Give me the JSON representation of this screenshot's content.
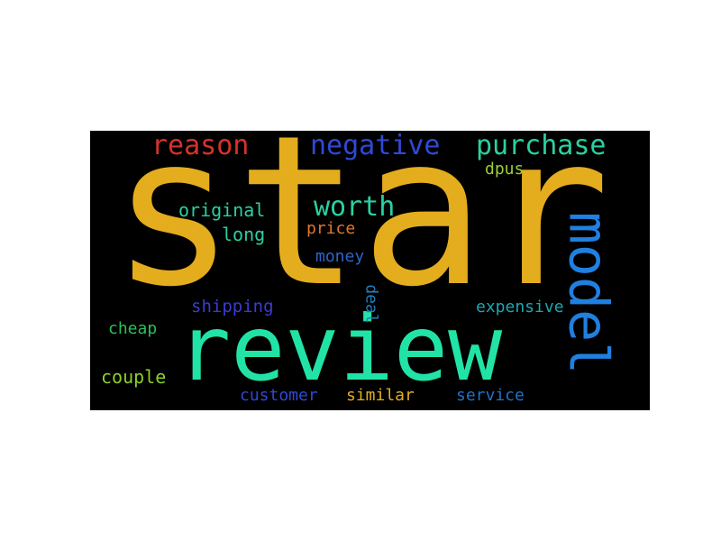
{
  "words": [
    {
      "key": "star",
      "text": "star",
      "color": "#e4ad1e"
    },
    {
      "key": "review",
      "text": "review",
      "color": "#22e3a6"
    },
    {
      "key": "model",
      "text": "model",
      "color": "#1f80e0"
    },
    {
      "key": "reason",
      "text": "reason",
      "color": "#d6322a"
    },
    {
      "key": "negative",
      "text": "negative",
      "color": "#2f49d6"
    },
    {
      "key": "purchase",
      "text": "purchase",
      "color": "#2bd0a0"
    },
    {
      "key": "worth",
      "text": "worth",
      "color": "#2bd0a0"
    },
    {
      "key": "dpus",
      "text": "dpus",
      "color": "#9ecf36"
    },
    {
      "key": "original",
      "text": "original",
      "color": "#2bd0a0"
    },
    {
      "key": "price",
      "text": "price",
      "color": "#e0782a"
    },
    {
      "key": "long",
      "text": "long",
      "color": "#2bd0a0"
    },
    {
      "key": "money",
      "text": "money",
      "color": "#2f62c8"
    },
    {
      "key": "shipping",
      "text": "shipping",
      "color": "#3a3cd0"
    },
    {
      "key": "deal",
      "text": "deal",
      "color": "#1f7fc0"
    },
    {
      "key": "expensive",
      "text": "expensive",
      "color": "#1ea6b0"
    },
    {
      "key": "cheap",
      "text": "cheap",
      "color": "#2cc05a"
    },
    {
      "key": "couple",
      "text": "couple",
      "color": "#8ccf2a"
    },
    {
      "key": "customer",
      "text": "customer",
      "color": "#2f49d6"
    },
    {
      "key": "similar",
      "text": "similar",
      "color": "#e4ad1e"
    },
    {
      "key": "service",
      "text": "service",
      "color": "#1f72c8"
    }
  ]
}
